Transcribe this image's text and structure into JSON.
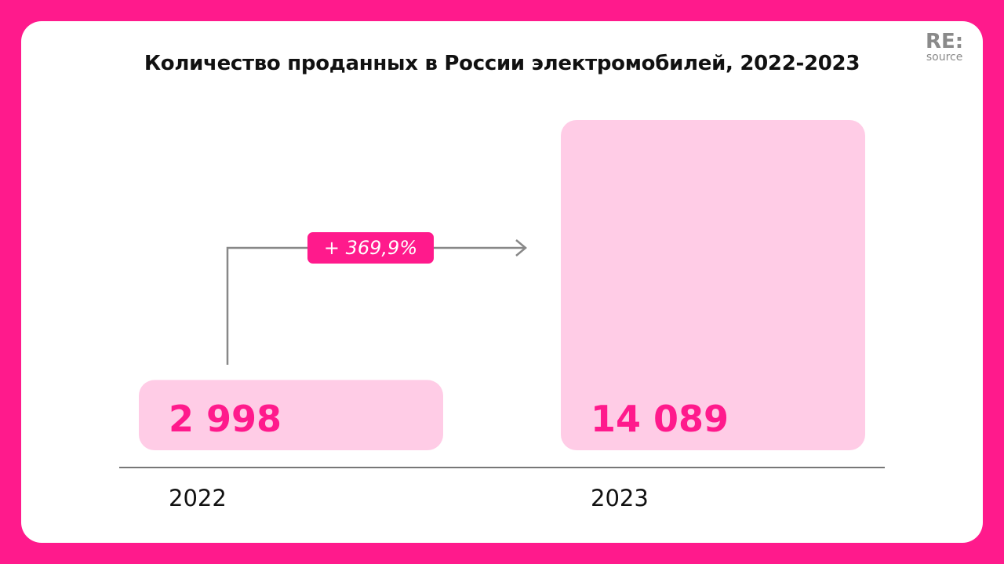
{
  "chart_data": {
    "type": "bar",
    "title": "Количество проданных в России электромобилей, 2022-2023",
    "categories": [
      "2022",
      "2023"
    ],
    "values": [
      2998,
      14089
    ],
    "value_labels": [
      "2 998",
      "14 089"
    ],
    "annotation": "+ 369,9%",
    "grid": false,
    "colors": {
      "bar": "#ffcce6",
      "accent": "#ff1a8c",
      "background": "#ff1a8c"
    }
  },
  "logo": {
    "top": "RE:",
    "bottom": "source"
  }
}
